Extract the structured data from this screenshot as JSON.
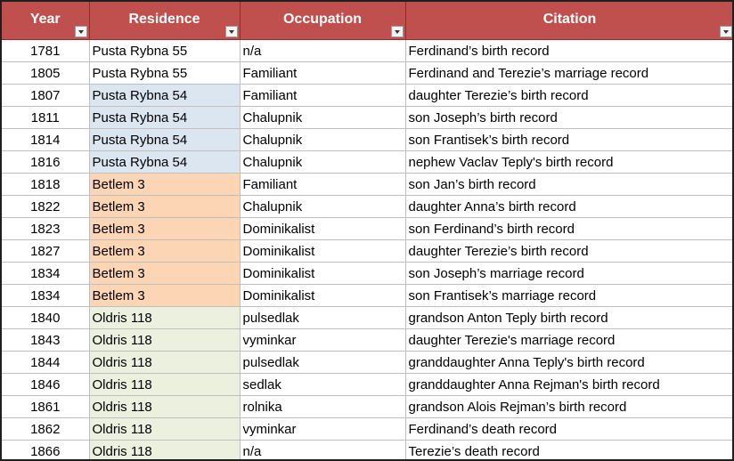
{
  "colors": {
    "header_bg": "#c0504d",
    "header_text": "#ffffff",
    "pusta_rybna_54": "#dce6f1",
    "betlem_3": "#fcd5b4",
    "oldris_118": "#ebf1de"
  },
  "headers": {
    "year": "Year",
    "residence": "Residence",
    "occupation": "Occupation",
    "citation": "Citation"
  },
  "rows": [
    {
      "year": "1781",
      "residence": "Pusta Rybna 55",
      "occupation": "n/a",
      "citation": "Ferdinand’s birth record"
    },
    {
      "year": "1805",
      "residence": "Pusta Rybna 55",
      "occupation": "Familiant",
      "citation": "Ferdinand and Terezie’s marriage record"
    },
    {
      "year": "1807",
      "residence": "Pusta Rybna 54",
      "occupation": "Familiant",
      "citation": "daughter Terezie’s birth record"
    },
    {
      "year": "1811",
      "residence": "Pusta Rybna 54",
      "occupation": "Chalupnik",
      "citation": "son Joseph’s birth record"
    },
    {
      "year": "1814",
      "residence": "Pusta Rybna 54",
      "occupation": "Chalupnik",
      "citation": "son Frantisek’s birth record"
    },
    {
      "year": "1816",
      "residence": "Pusta Rybna 54",
      "occupation": "Chalupnik",
      "citation": "nephew Vaclav Teply's birth record"
    },
    {
      "year": "1818",
      "residence": "Betlem 3",
      "occupation": "Familiant",
      "citation": "son Jan’s birth record"
    },
    {
      "year": "1822",
      "residence": "Betlem 3",
      "occupation": "Chalupnik",
      "citation": "daughter Anna’s birth record"
    },
    {
      "year": "1823",
      "residence": "Betlem 3",
      "occupation": "Dominikalist",
      "citation": "son Ferdinand’s birth record"
    },
    {
      "year": "1827",
      "residence": "Betlem 3",
      "occupation": "Dominikalist",
      "citation": "daughter Terezie’s birth record"
    },
    {
      "year": "1834",
      "residence": "Betlem 3",
      "occupation": "Dominikalist",
      "citation": "son Joseph’s marriage record"
    },
    {
      "year": "1834",
      "residence": "Betlem 3",
      "occupation": "Dominikalist",
      "citation": "son Frantisek’s marriage record"
    },
    {
      "year": "1840",
      "residence": "Oldris 118",
      "occupation": "pulsedlak",
      "citation": "grandson Anton Teply birth record"
    },
    {
      "year": "1843",
      "residence": "Oldris 118",
      "occupation": "vyminkar",
      "citation": "daughter Terezie's marriage record"
    },
    {
      "year": "1844",
      "residence": "Oldris 118",
      "occupation": "pulsedlak",
      "citation": "granddaughter Anna Teply's birth record"
    },
    {
      "year": "1846",
      "residence": "Oldris 118",
      "occupation": "sedlak",
      "citation": "granddaughter Anna Rejman's birth record"
    },
    {
      "year": "1861",
      "residence": "Oldris 118",
      "occupation": "rolnika",
      "citation": "grandson Alois Rejman’s birth record"
    },
    {
      "year": "1862",
      "residence": "Oldris 118",
      "occupation": "vyminkar",
      "citation": "Ferdinand’s death record"
    },
    {
      "year": "1866",
      "residence": "Oldris 118",
      "occupation": "n/a",
      "citation": "Terezie’s death record"
    }
  ]
}
